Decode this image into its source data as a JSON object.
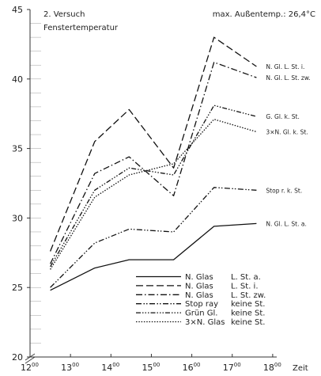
{
  "chart_data": {
    "type": "line",
    "title": "2. Versuch",
    "subtitle": "Fenstertemperatur",
    "note": "max. Außentemp.: 26,4°C",
    "xlabel": "Zeit",
    "ylabel": "",
    "xlim": [
      12.0,
      18.1
    ],
    "ylim": [
      20,
      45
    ],
    "yticks": [
      20,
      25,
      30,
      35,
      40,
      45
    ],
    "xticks": [
      {
        "v": 12,
        "h": "12",
        "m": "00"
      },
      {
        "v": 13,
        "h": "13",
        "m": "00"
      },
      {
        "v": 14,
        "h": "14",
        "m": "00"
      },
      {
        "v": 15,
        "h": "15",
        "m": "00"
      },
      {
        "v": 16,
        "h": "16",
        "m": "00"
      },
      {
        "v": 17,
        "h": "17",
        "m": "00"
      },
      {
        "v": 18,
        "h": "18",
        "m": "00"
      }
    ],
    "x": [
      12.5,
      13.6,
      14.45,
      15.55,
      16.55,
      17.6
    ],
    "series": [
      {
        "label": "N. Gl. L. St. a.",
        "legend_name": "N. Glas",
        "legend_info": "L. St. a.",
        "dash": "",
        "values": [
          24.8,
          26.4,
          27.0,
          27.0,
          29.4,
          29.6
        ]
      },
      {
        "label": "N. Gl. L. St. i.",
        "legend_name": "N. Glas",
        "legend_info": "L. St. i.",
        "dash": "9 4",
        "values": [
          27.6,
          35.5,
          37.8,
          33.6,
          43.0,
          40.9
        ]
      },
      {
        "label": "N. Gl. L. St. zw.",
        "legend_name": "N. Glas",
        "legend_info": "L. St. zw.",
        "dash": "8 3 1.5 3",
        "values": [
          26.7,
          33.2,
          34.4,
          31.6,
          41.2,
          40.1
        ]
      },
      {
        "label": "Stop r. k. St.",
        "legend_name": "Stop ray",
        "legend_info": "keine St.",
        "dash": "7 2.5 1.5 2 1.5 2.5",
        "values": [
          25.0,
          28.2,
          29.2,
          29.0,
          32.2,
          32.0
        ]
      },
      {
        "label": "G. Gl. k. St.",
        "legend_name": "Grün Gl.",
        "legend_info": "keine St.",
        "dash": "6 2 1.5 2 1.5 2 1.5 2",
        "values": [
          26.5,
          32.0,
          33.6,
          33.1,
          38.1,
          37.3
        ]
      },
      {
        "label": "3×N. Gl. k. St.",
        "legend_name": "3×N. Glas",
        "legend_info": "keine St.",
        "dash": "1.5 1.8",
        "values": [
          26.3,
          31.5,
          33.1,
          33.9,
          37.1,
          36.2
        ]
      }
    ]
  }
}
